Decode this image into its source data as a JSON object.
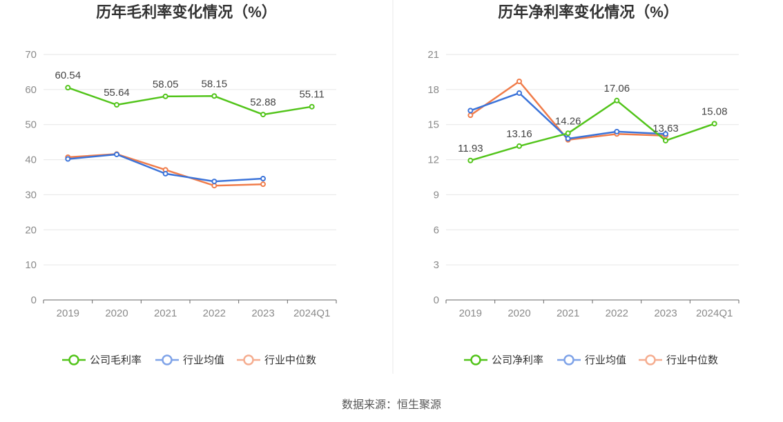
{
  "source_text": "数据来源：恒生聚源",
  "chart_data": [
    {
      "type": "line",
      "title": "历年毛利率变化情况（%）",
      "categories": [
        "2019",
        "2020",
        "2021",
        "2022",
        "2023",
        "2024Q1"
      ],
      "ylim": [
        0,
        70
      ],
      "yticks": [
        0,
        10,
        20,
        30,
        40,
        50,
        60,
        70
      ],
      "xlabel": "",
      "ylabel": "",
      "legend_position": "bottom-center",
      "series": [
        {
          "name": "公司毛利率",
          "color": "#52c41a",
          "values": [
            60.54,
            55.64,
            58.05,
            58.15,
            52.88,
            55.11
          ],
          "show_labels": true
        },
        {
          "name": "行业均值",
          "color": "#3b73d9",
          "values": [
            40.2,
            41.5,
            36.0,
            33.8,
            34.6,
            null
          ],
          "show_labels": false
        },
        {
          "name": "行业中位数",
          "color": "#f07c4a",
          "values": [
            40.7,
            41.6,
            37.1,
            32.6,
            33.0,
            null
          ],
          "show_labels": false
        }
      ]
    },
    {
      "type": "line",
      "title": "历年净利率变化情况（%）",
      "categories": [
        "2019",
        "2020",
        "2021",
        "2022",
        "2023",
        "2024Q1"
      ],
      "ylim": [
        0,
        21
      ],
      "yticks": [
        0,
        3,
        6,
        9,
        12,
        15,
        18,
        21
      ],
      "xlabel": "",
      "ylabel": "",
      "legend_position": "bottom-center",
      "series": [
        {
          "name": "公司净利率",
          "color": "#52c41a",
          "values": [
            11.93,
            13.16,
            14.26,
            17.06,
            13.63,
            15.08
          ],
          "show_labels": true
        },
        {
          "name": "行业均值",
          "color": "#3b73d9",
          "values": [
            16.2,
            17.7,
            13.8,
            14.4,
            14.2,
            null
          ],
          "show_labels": false
        },
        {
          "name": "行业中位数",
          "color": "#f07c4a",
          "values": [
            15.8,
            18.7,
            13.7,
            14.2,
            14.05,
            null
          ],
          "show_labels": false
        }
      ]
    }
  ]
}
